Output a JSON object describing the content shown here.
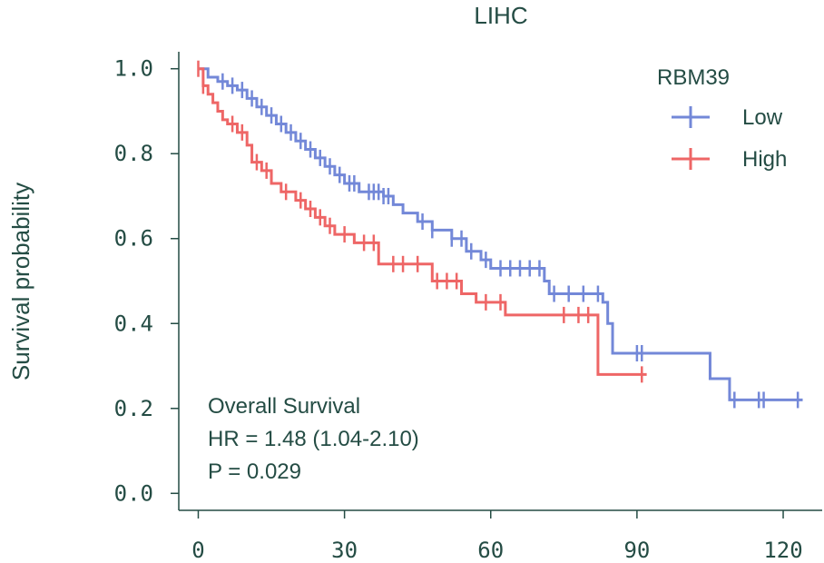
{
  "chart_data": {
    "type": "line",
    "subtype": "kaplan-meier",
    "title": "LIHC",
    "xlabel": "",
    "ylabel": "Survival probability",
    "xlim": [
      -4,
      128
    ],
    "ylim": [
      -0.04,
      1.04
    ],
    "x_ticks": [
      "0",
      "30",
      "60",
      "90",
      "120"
    ],
    "y_ticks": [
      "0.0",
      "0.2",
      "0.4",
      "0.6",
      "0.8",
      "1.0"
    ],
    "grid": false,
    "legend": {
      "title": "RBM39",
      "placement": "top-right"
    },
    "annotation": [
      "Overall Survival",
      "HR = 1.48 (1.04-2.10)",
      "P = 0.029"
    ],
    "series": [
      {
        "name": "Low",
        "color": "#7388d8",
        "steps": [
          [
            0,
            1.0
          ],
          [
            2,
            0.98
          ],
          [
            4,
            0.97
          ],
          [
            6,
            0.96
          ],
          [
            8,
            0.95
          ],
          [
            10,
            0.93
          ],
          [
            12,
            0.91
          ],
          [
            14,
            0.89
          ],
          [
            16,
            0.87
          ],
          [
            18,
            0.85
          ],
          [
            20,
            0.83
          ],
          [
            22,
            0.81
          ],
          [
            24,
            0.79
          ],
          [
            26,
            0.77
          ],
          [
            28,
            0.75
          ],
          [
            30,
            0.73
          ],
          [
            33,
            0.71
          ],
          [
            38,
            0.7
          ],
          [
            40,
            0.68
          ],
          [
            42,
            0.66
          ],
          [
            45,
            0.64
          ],
          [
            48,
            0.62
          ],
          [
            52,
            0.6
          ],
          [
            55,
            0.57
          ],
          [
            58,
            0.55
          ],
          [
            60,
            0.53
          ],
          [
            71,
            0.5
          ],
          [
            72,
            0.47
          ],
          [
            83,
            0.45
          ],
          [
            84,
            0.4
          ],
          [
            85,
            0.33
          ],
          [
            105,
            0.27
          ],
          [
            109,
            0.22
          ],
          [
            124,
            0.22
          ]
        ],
        "censor_x": [
          5,
          7,
          9,
          11,
          13,
          15,
          17,
          19,
          21,
          23,
          25,
          27,
          29,
          31,
          32,
          35,
          36,
          37,
          38,
          39,
          46,
          48,
          52,
          54,
          56,
          59,
          62,
          64,
          66,
          68,
          70,
          73,
          76,
          79,
          82,
          90,
          91,
          110,
          115,
          116,
          123
        ]
      },
      {
        "name": "High",
        "color": "#ee6666",
        "steps": [
          [
            0,
            1.0
          ],
          [
            1,
            0.96
          ],
          [
            2,
            0.94
          ],
          [
            3,
            0.92
          ],
          [
            4,
            0.9
          ],
          [
            5,
            0.88
          ],
          [
            6,
            0.87
          ],
          [
            8,
            0.85
          ],
          [
            10,
            0.82
          ],
          [
            11,
            0.78
          ],
          [
            13,
            0.76
          ],
          [
            15,
            0.73
          ],
          [
            17,
            0.71
          ],
          [
            20,
            0.69
          ],
          [
            22,
            0.67
          ],
          [
            24,
            0.65
          ],
          [
            26,
            0.63
          ],
          [
            28,
            0.61
          ],
          [
            32,
            0.59
          ],
          [
            37,
            0.54
          ],
          [
            48,
            0.5
          ],
          [
            54,
            0.47
          ],
          [
            57,
            0.45
          ],
          [
            63,
            0.42
          ],
          [
            82,
            0.28
          ],
          [
            92,
            0.28
          ]
        ],
        "censor_x": [
          0,
          1,
          7,
          9,
          12,
          14,
          18,
          21,
          23,
          25,
          27,
          30,
          34,
          36,
          40,
          42,
          45,
          49,
          51,
          53,
          59,
          62,
          75,
          78,
          80,
          91
        ]
      }
    ]
  }
}
